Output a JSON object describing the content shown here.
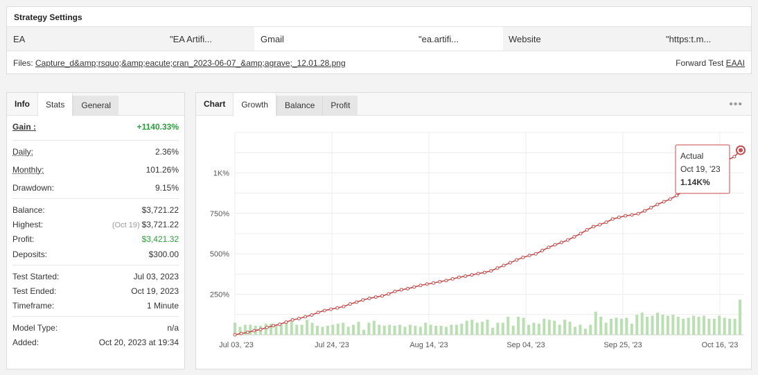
{
  "settings": {
    "title": "Strategy Settings",
    "fields": [
      {
        "label": "EA",
        "value": "\"EA Artifi..."
      },
      {
        "label": "Gmail",
        "value": "\"ea.artifi..."
      },
      {
        "label": "Website",
        "value": "\"https:t.m..."
      }
    ],
    "files_label": "Files:",
    "file_name": "Capture_d&amp;rsquo;&amp;eacute;cran_2023-06-07_&amp;agrave;_12.01.28.png",
    "forward_test_label": "Forward Test",
    "forward_test_link": "EAAI"
  },
  "info": {
    "tabs": [
      "Info",
      "Stats",
      "General"
    ],
    "gain_label": "Gain :",
    "gain_value": "+1140.33%",
    "daily_label": "Daily:",
    "daily_value": "2.36%",
    "monthly_label": "Monthly:",
    "monthly_value": "101.26%",
    "drawdown_label": "Drawdown:",
    "drawdown_value": "9.15%",
    "balance_label": "Balance:",
    "balance_value": "$3,721.22",
    "highest_label": "Highest:",
    "highest_date": "(Oct 19)",
    "highest_value": "$3,721.22",
    "profit_label": "Profit:",
    "profit_value": "$3,421.32",
    "deposits_label": "Deposits:",
    "deposits_value": "$300.00",
    "test_started_label": "Test Started:",
    "test_started_value": "Jul 03, 2023",
    "test_ended_label": "Test Ended:",
    "test_ended_value": "Oct 19, 2023",
    "timeframe_label": "Timeframe:",
    "timeframe_value": "1 Minute",
    "model_type_label": "Model Type:",
    "model_type_value": "n/a",
    "added_label": "Added:",
    "added_value": "Oct 20, 2023 at 19:34"
  },
  "chart_panel": {
    "tabs": [
      "Chart",
      "Growth",
      "Balance",
      "Profit"
    ],
    "more_icon": "ellipsis-icon",
    "tooltip": {
      "title": "Actual",
      "date": "Oct 19, '23",
      "value": "1.14K%"
    }
  },
  "colors": {
    "line": "#c94a4a",
    "bar": "#b9e0b0",
    "green": "#2aa03a"
  },
  "chart_data": {
    "type": "line",
    "x_tick_labels": [
      "Jul 03, '23",
      "Jul 24, '23",
      "Aug 14, '23",
      "Sep 04, '23",
      "Sep 25, '23",
      "Oct 16, '23"
    ],
    "y_tick_labels": [
      "250%",
      "500%",
      "750%",
      "1K%"
    ],
    "ylim": [
      0,
      1250
    ],
    "grid": true,
    "growth_values": [
      0,
      8,
      15,
      25,
      33,
      45,
      56,
      65,
      78,
      92,
      100,
      112,
      122,
      138,
      150,
      158,
      166,
      175,
      190,
      202,
      215,
      225,
      233,
      240,
      252,
      268,
      278,
      285,
      295,
      305,
      313,
      320,
      328,
      335,
      345,
      355,
      362,
      370,
      378,
      385,
      395,
      412,
      428,
      445,
      462,
      478,
      490,
      500,
      520,
      540,
      556,
      570,
      585,
      605,
      625,
      648,
      668,
      680,
      695,
      715,
      725,
      735,
      740,
      748,
      765,
      785,
      805,
      822,
      838,
      860,
      885,
      900,
      922,
      948,
      975,
      1005,
      1040,
      1080,
      1100,
      1140
    ],
    "daily_bars": [
      12,
      8,
      10,
      10,
      9,
      9,
      11,
      11,
      9,
      10,
      12,
      13,
      10,
      10,
      15,
      12,
      9,
      8,
      9,
      10,
      11,
      12,
      8,
      10,
      13,
      5,
      12,
      14,
      10,
      9,
      10,
      9,
      10,
      8,
      10,
      9,
      8,
      12,
      10,
      9,
      9,
      8,
      10,
      10,
      11,
      14,
      15,
      12,
      13,
      15,
      7,
      12,
      12,
      18,
      9,
      18,
      17,
      10,
      12,
      11,
      16,
      15,
      14,
      10,
      15,
      13,
      8,
      10,
      6,
      10,
      23,
      18,
      12,
      16,
      17,
      16,
      17,
      11,
      20,
      22,
      18,
      19,
      22,
      20,
      19,
      20,
      18,
      16,
      17,
      19,
      18,
      19,
      16,
      16,
      19,
      17,
      16,
      16,
      35
    ]
  }
}
